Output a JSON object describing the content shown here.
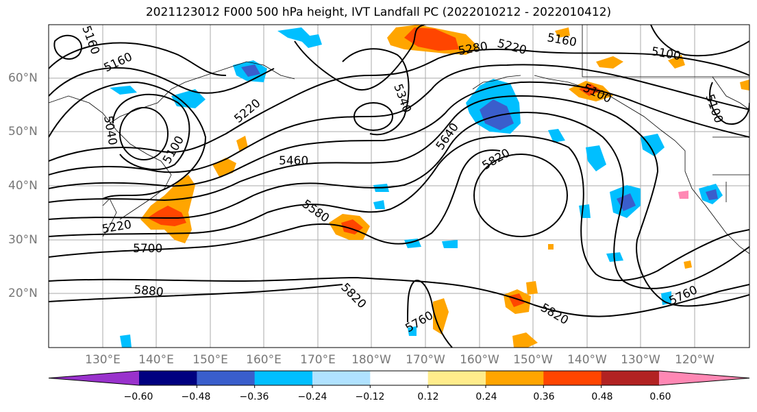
{
  "title": "2021123012 F000 500 hPa height, IVT Landfall PC (2022010212 - 2022010412)",
  "lat_labels": [
    "60°N",
    "50°N",
    "40°N",
    "30°N",
    "20°N"
  ],
  "lon_labels": [
    "130°E",
    "140°E",
    "150°E",
    "160°E",
    "170°E",
    "180°W",
    "170°W",
    "160°W",
    "150°W",
    "140°W",
    "130°W",
    "120°W"
  ],
  "colorbar": {
    "colors": [
      "#9932cc",
      "#000080",
      "#3a5ecc",
      "#00bfff",
      "#b0e2ff",
      "#ffffff",
      "#ffec8b",
      "#ffa500",
      "#ff4500",
      "#b22222",
      "#ff88b4"
    ],
    "tick_labels": [
      "−0.60",
      "−0.48",
      "−0.36",
      "−0.24",
      "−0.12",
      "0.12",
      "0.24",
      "0.36",
      "0.48",
      "0.60"
    ]
  },
  "contour_labels": [
    "5160",
    "5160",
    "5040",
    "5100",
    "5220",
    "5220",
    "5340",
    "5280",
    "5460",
    "5580",
    "5640",
    "5820",
    "5700",
    "5880",
    "5820",
    "5760",
    "5820",
    "5760",
    "5100",
    "5100",
    "5100",
    "5160",
    "5220"
  ]
}
